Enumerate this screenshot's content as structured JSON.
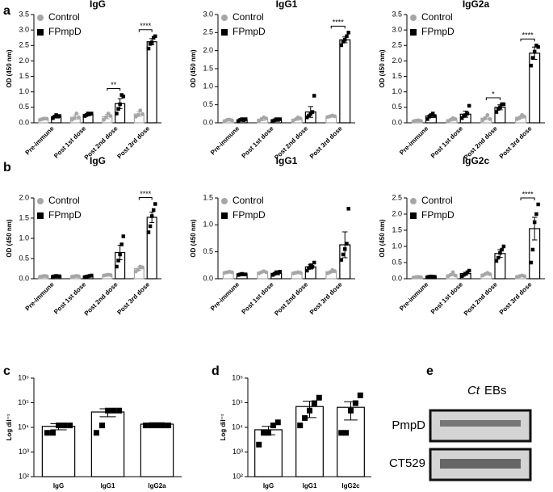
{
  "panel_labels": [
    "a",
    "b",
    "c",
    "d",
    "e"
  ],
  "blot": {
    "header_italic": "Ct",
    "header": "EBs",
    "bands": [
      "PmpD",
      "CT529"
    ]
  },
  "chart_data": [
    {
      "type": "bar",
      "title": "IgG",
      "y_label": "OD (450 nm)",
      "categories": [
        "Pre-immune",
        "Post 1st dose",
        "Post 2nd dose",
        "Post 3rd dose"
      ],
      "ylim": [
        0,
        3.5
      ],
      "yticks": [
        {
          "value": 0,
          "label": "0.0"
        },
        0.5,
        {
          "value": 1,
          "label": "1.0"
        },
        1.5,
        {
          "value": 2,
          "label": "2.0"
        },
        2.5,
        {
          "value": 3,
          "label": "3.0"
        },
        3.5
      ],
      "series": [
        {
          "name": "Control",
          "color": "#a6a6a6",
          "values": [
            0.12,
            0.18,
            0.2,
            0.28
          ],
          "errors": [
            0.02,
            0.07,
            0.07,
            0.07
          ],
          "points": [
            [
              0.1,
              0.12,
              0.14,
              0.13
            ],
            [
              0.1,
              0.15,
              0.3,
              0.17
            ],
            [
              0.1,
              0.18,
              0.3,
              0.22
            ],
            [
              0.2,
              0.25,
              0.4,
              0.28
            ]
          ]
        },
        {
          "name": "FPmpD",
          "color": "#000000",
          "values": [
            0.2,
            0.27,
            0.62,
            2.62
          ],
          "errors": [
            0.03,
            0.04,
            0.16,
            0.1
          ],
          "points": [
            [
              0.15,
              0.2,
              0.25,
              0.2,
              0.22
            ],
            [
              0.22,
              0.25,
              0.3,
              0.28,
              0.3
            ],
            [
              0.3,
              0.45,
              0.6,
              0.9,
              0.85
            ],
            [
              2.4,
              2.55,
              2.6,
              2.75,
              2.8
            ]
          ]
        }
      ],
      "significance": [
        null,
        null,
        "**",
        "****"
      ]
    },
    {
      "type": "bar",
      "title": "IgG1",
      "y_label": "OD (450 nm)",
      "categories": [
        "Pre-immune",
        "Post 1st dose",
        "Post 2nd dose",
        "Post 3rd dose"
      ],
      "ylim": [
        0,
        3
      ],
      "yticks": [
        {
          "value": 0,
          "label": "0.0"
        },
        0.5,
        {
          "value": 1,
          "label": "1.0"
        },
        1.5,
        {
          "value": 2,
          "label": "2.0"
        },
        2.5,
        {
          "value": 3,
          "label": "3.0"
        }
      ],
      "series": [
        {
          "name": "Control",
          "color": "#a6a6a6",
          "values": [
            0.07,
            0.1,
            0.1,
            0.18
          ],
          "errors": [
            0.02,
            0.04,
            0.03,
            0.02
          ],
          "points": [
            [
              0.05,
              0.08,
              0.09,
              0.07
            ],
            [
              0.05,
              0.1,
              0.15,
              0.12
            ],
            [
              0.06,
              0.1,
              0.15,
              0.12
            ],
            [
              0.16,
              0.18,
              0.2,
              0.18
            ]
          ]
        },
        {
          "name": "FPmpD",
          "color": "#000000",
          "values": [
            0.08,
            0.08,
            0.3,
            2.3
          ],
          "errors": [
            0.02,
            0.02,
            0.15,
            0.08
          ],
          "points": [
            [
              0.05,
              0.08,
              0.1,
              0.07,
              0.1
            ],
            [
              0.05,
              0.07,
              0.1,
              0.08,
              0.1
            ],
            [
              0.15,
              0.2,
              0.25,
              0.3,
              0.75
            ],
            [
              2.15,
              2.25,
              2.3,
              2.4,
              2.5
            ]
          ]
        }
      ],
      "significance": [
        null,
        null,
        null,
        "****"
      ]
    },
    {
      "type": "bar",
      "title": "IgG2a",
      "y_label": "OD (450 nm)",
      "categories": [
        "Pre-immune",
        "Post 1st dose",
        "Post 2nd dose",
        "Post 3rd dose"
      ],
      "ylim": [
        0,
        3.5
      ],
      "yticks": [
        {
          "value": 0,
          "label": "0.0"
        },
        0.5,
        {
          "value": 1,
          "label": "1.0"
        },
        1.5,
        {
          "value": 2,
          "label": "2.0"
        },
        2.5,
        {
          "value": 3,
          "label": "3.0"
        },
        3.5
      ],
      "series": [
        {
          "name": "Control",
          "color": "#a6a6a6",
          "values": [
            0.07,
            0.1,
            0.15,
            0.18
          ],
          "errors": [
            0.02,
            0.04,
            0.05,
            0.04
          ],
          "points": [
            [
              0.05,
              0.07,
              0.08,
              0.06
            ],
            [
              0.05,
              0.1,
              0.15,
              0.12
            ],
            [
              0.08,
              0.15,
              0.25,
              0.12
            ],
            [
              0.12,
              0.15,
              0.25,
              0.2
            ]
          ]
        },
        {
          "name": "FPmpD",
          "color": "#000000",
          "values": [
            0.22,
            0.28,
            0.5,
            2.25
          ],
          "errors": [
            0.05,
            0.1,
            0.08,
            0.2
          ],
          "points": [
            [
              0.12,
              0.2,
              0.25,
              0.3,
              0.22
            ],
            [
              0.15,
              0.22,
              0.25,
              0.3,
              0.55
            ],
            [
              0.35,
              0.45,
              0.5,
              0.6,
              0.6
            ],
            [
              1.85,
              2.1,
              2.3,
              2.5,
              2.45
            ]
          ]
        }
      ],
      "significance": [
        null,
        null,
        "*",
        "****"
      ]
    },
    {
      "type": "bar",
      "title": "IgG",
      "y_label": "OD (450 nm)",
      "categories": [
        "Pre-immune",
        "Post 1st dose",
        "Post 2nd dose",
        "Post 3rd dose"
      ],
      "ylim": [
        0,
        2
      ],
      "yticks": [
        {
          "value": 0,
          "label": "0.0"
        },
        0.5,
        {
          "value": 1,
          "label": "1.0"
        },
        1.5,
        {
          "value": 2,
          "label": "2.0"
        }
      ],
      "series": [
        {
          "name": "Control",
          "color": "#a6a6a6",
          "values": [
            0.06,
            0.06,
            0.09,
            0.25
          ],
          "errors": [
            0.01,
            0.01,
            0.01,
            0.04
          ],
          "points": [
            [
              0.05,
              0.06,
              0.07,
              0.06
            ],
            [
              0.05,
              0.06,
              0.07,
              0.06
            ],
            [
              0.08,
              0.09,
              0.1,
              0.09
            ],
            [
              0.18,
              0.22,
              0.3,
              0.28
            ]
          ]
        },
        {
          "name": "FPmpD",
          "color": "#000000",
          "values": [
            0.06,
            0.06,
            0.65,
            1.52
          ],
          "errors": [
            0.01,
            0.01,
            0.18,
            0.13
          ],
          "points": [
            [
              0.05,
              0.06,
              0.07,
              0.06,
              0.06
            ],
            [
              0.04,
              0.05,
              0.06,
              0.07,
              0.08
            ],
            [
              0.3,
              0.45,
              0.6,
              0.85,
              1.05
            ],
            [
              1.15,
              1.3,
              1.55,
              1.7,
              1.85
            ]
          ]
        }
      ],
      "significance": [
        null,
        null,
        null,
        "****"
      ]
    },
    {
      "type": "bar",
      "title": "IgG1",
      "y_label": "OD (450 nm)",
      "categories": [
        "Pre-immune",
        "Post 1st dose",
        "Post 2nd dose",
        "Post 3rd dose"
      ],
      "ylim": [
        0,
        1.5
      ],
      "yticks": [
        {
          "value": 0,
          "label": "0.0"
        },
        0.5,
        {
          "value": 1,
          "label": "1.0"
        },
        1.5
      ],
      "series": [
        {
          "name": "Control",
          "color": "#a6a6a6",
          "values": [
            0.12,
            0.12,
            0.11,
            0.13
          ],
          "errors": [
            0.01,
            0.01,
            0.01,
            0.02
          ],
          "points": [
            [
              0.11,
              0.12,
              0.13,
              0.12
            ],
            [
              0.1,
              0.12,
              0.14,
              0.12
            ],
            [
              0.1,
              0.11,
              0.12,
              0.11
            ],
            [
              0.1,
              0.12,
              0.16,
              0.14
            ]
          ]
        },
        {
          "name": "FPmpD",
          "color": "#000000",
          "values": [
            0.08,
            0.1,
            0.22,
            0.63
          ],
          "errors": [
            0.01,
            0.02,
            0.04,
            0.24
          ],
          "points": [
            [
              0.07,
              0.08,
              0.09,
              0.08,
              0.08
            ],
            [
              0.07,
              0.09,
              0.12,
              0.1,
              0.13
            ],
            [
              0.15,
              0.2,
              0.25,
              0.22,
              0.3
            ],
            [
              0.35,
              0.45,
              0.55,
              0.65,
              1.3
            ]
          ]
        }
      ]
    },
    {
      "type": "bar",
      "title": "IgG2c",
      "y_label": "OD (450 nm)",
      "categories": [
        "Pre-immune",
        "Post 1st dose",
        "Post 2nd dose",
        "Post 3rd dose"
      ],
      "ylim": [
        0,
        2.5
      ],
      "yticks": [
        {
          "value": 0,
          "label": "0.0"
        },
        0.5,
        {
          "value": 1,
          "label": "1.0"
        },
        1.5,
        {
          "value": 2,
          "label": "2.0"
        },
        2.5
      ],
      "series": [
        {
          "name": "Control",
          "color": "#a6a6a6",
          "values": [
            0.05,
            0.12,
            0.14,
            0.08
          ],
          "errors": [
            0.01,
            0.03,
            0.02,
            0.01
          ],
          "points": [
            [
              0.04,
              0.05,
              0.06,
              0.05
            ],
            [
              0.08,
              0.12,
              0.2,
              0.1
            ],
            [
              0.1,
              0.14,
              0.18,
              0.14
            ],
            [
              0.06,
              0.08,
              0.1,
              0.08
            ]
          ]
        },
        {
          "name": "FPmpD",
          "color": "#000000",
          "values": [
            0.06,
            0.16,
            0.78,
            1.55
          ],
          "errors": [
            0.01,
            0.04,
            0.12,
            0.35
          ],
          "points": [
            [
              0.05,
              0.06,
              0.07,
              0.06,
              0.06
            ],
            [
              0.08,
              0.12,
              0.15,
              0.2,
              0.25
            ],
            [
              0.55,
              0.65,
              0.8,
              0.9,
              1.0
            ],
            [
              0.5,
              0.9,
              1.75,
              2.0,
              2.3
            ]
          ]
        }
      ],
      "significance": [
        null,
        null,
        null,
        "****"
      ]
    },
    {
      "type": "bar",
      "y_label": "Log dil⁻¹",
      "log": true,
      "color": "#000000",
      "categories": [
        "IgG",
        "IgG1",
        "IgG2a"
      ],
      "ylim": [
        100,
        1000000
      ],
      "yticks": [
        {
          "value": 100,
          "label": "10²"
        },
        {
          "value": 1000,
          "label": "10³"
        },
        {
          "value": 10000,
          "label": "10⁴"
        },
        {
          "value": 100000,
          "label": "10⁵"
        },
        {
          "value": 1000000,
          "label": "10⁶"
        }
      ],
      "values": [
        11000,
        42000,
        13500
      ],
      "errors": [
        3000,
        15000,
        2000
      ],
      "points": [
        [
          6000,
          6000,
          12000,
          12000,
          12000
        ],
        [
          6000,
          12000,
          48000,
          48000,
          48000
        ],
        [
          12000,
          12000,
          12000,
          12000,
          12000
        ]
      ]
    },
    {
      "type": "bar",
      "y_label": "Log dil⁻¹",
      "log": true,
      "color": "#000000",
      "categories": [
        "IgG",
        "IgG1",
        "IgG2c"
      ],
      "ylim": [
        100,
        1000000
      ],
      "yticks": [
        {
          "value": 100,
          "label": "10²"
        },
        {
          "value": 1000,
          "label": "10³"
        },
        {
          "value": 10000,
          "label": "10⁴"
        },
        {
          "value": 100000,
          "label": "10⁵"
        },
        {
          "value": 1000000,
          "label": "10⁶"
        }
      ],
      "values": [
        8000,
        70000,
        65000
      ],
      "errors": [
        3000,
        45000,
        45000
      ],
      "points": [
        [
          2000,
          6000,
          6000,
          12000,
          16000
        ],
        [
          12000,
          24000,
          48000,
          96000,
          160000
        ],
        [
          6000,
          6000,
          48000,
          96000,
          200000
        ]
      ]
    }
  ]
}
